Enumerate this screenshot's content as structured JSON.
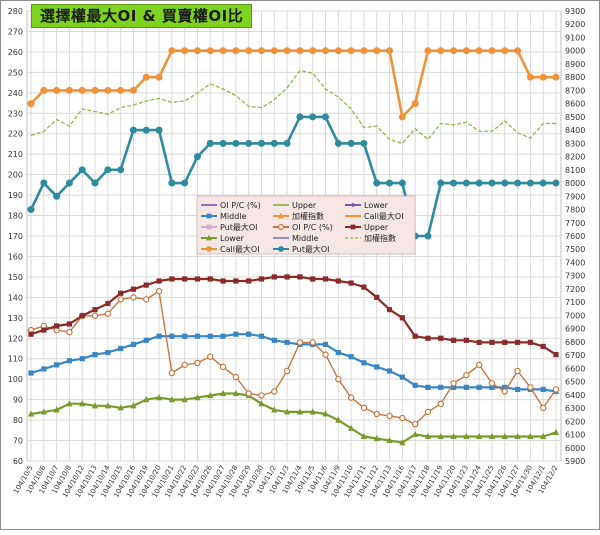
{
  "chart_data": {
    "type": "line",
    "title": "選擇權最大OI & 買賣權OI比",
    "x": [
      "104/10/5",
      "104/10/6",
      "104/10/7",
      "104/10/8",
      "104/10/12",
      "104/10/13",
      "104/10/14",
      "104/10/15",
      "104/10/16",
      "104/10/19",
      "104/10/20",
      "104/10/21",
      "104/10/22",
      "104/10/23",
      "104/10/26",
      "104/10/27",
      "104/10/28",
      "104/10/29",
      "104/10/30",
      "104/11/2",
      "104/11/3",
      "104/11/4",
      "104/11/5",
      "104/11/6",
      "104/11/9",
      "104/11/10",
      "104/11/11",
      "104/11/12",
      "104/11/13",
      "104/11/16",
      "104/11/17",
      "104/11/18",
      "104/11/19",
      "104/11/20",
      "104/11/23",
      "104/11/24",
      "104/11/25",
      "104/11/26",
      "104/11/27",
      "104/11/30",
      "104/12/1",
      "104/12/2"
    ],
    "y_left": {
      "min": 60,
      "max": 280,
      "step": 10
    },
    "y_right": {
      "min": 5900,
      "max": 9300,
      "step": 100
    },
    "grid": true,
    "legend_position": "center",
    "series": [
      {
        "name": "OI P/C (%)",
        "axis": "left",
        "color": "#c8763f",
        "marker": "circle-open",
        "values": [
          124,
          126,
          124,
          123,
          131,
          131,
          132,
          139,
          140,
          139,
          143,
          103,
          107,
          108,
          111,
          106,
          101,
          93,
          92,
          94,
          104,
          118,
          118,
          112,
          100,
          91,
          86,
          83,
          82,
          81,
          78,
          84,
          88,
          98,
          102,
          107,
          98,
          94,
          104,
          96,
          86,
          95
        ]
      },
      {
        "name": "Upper",
        "axis": "left",
        "color": "#8b2a2a",
        "marker": "square",
        "values": [
          122,
          124,
          126,
          127,
          131,
          134,
          137,
          142,
          144,
          146,
          148,
          149,
          149,
          149,
          149,
          148,
          148,
          148,
          149,
          150,
          150,
          150,
          149,
          149,
          148,
          147,
          145,
          140,
          134,
          130,
          121,
          120,
          120,
          119,
          119,
          118,
          118,
          118,
          118,
          118,
          116,
          112
        ]
      },
      {
        "name": "Middle",
        "axis": "left",
        "color": "#3a86c4",
        "marker": "square",
        "values": [
          103,
          105,
          107,
          109,
          110,
          112,
          113,
          115,
          117,
          119,
          121,
          121,
          121,
          121,
          121,
          121,
          122,
          122,
          121,
          119,
          118,
          117,
          117,
          117,
          113,
          111,
          108,
          106,
          104,
          101,
          97,
          96,
          96,
          96,
          96,
          96,
          96,
          96,
          95,
          95,
          95,
          94
        ]
      },
      {
        "name": "Lower",
        "axis": "left",
        "color": "#7a9a2c",
        "marker": "triangle",
        "values": [
          83,
          84,
          85,
          88,
          88,
          87,
          87,
          86,
          87,
          90,
          91,
          90,
          90,
          91,
          92,
          93,
          93,
          92,
          88,
          85,
          84,
          84,
          84,
          83,
          80,
          76,
          72,
          71,
          70,
          69,
          73,
          72,
          72,
          72,
          72,
          72,
          72,
          72,
          72,
          72,
          72,
          74
        ]
      },
      {
        "name": "加權指數",
        "axis": "right",
        "color": "#8cb84a",
        "marker": "none",
        "dashed": true,
        "values": [
          8360,
          8390,
          8480,
          8430,
          8560,
          8540,
          8520,
          8570,
          8590,
          8620,
          8640,
          8610,
          8620,
          8680,
          8750,
          8710,
          8660,
          8580,
          8570,
          8630,
          8720,
          8850,
          8830,
          8710,
          8650,
          8560,
          8420,
          8430,
          8330,
          8300,
          8410,
          8330,
          8450,
          8440,
          8460,
          8390,
          8390,
          8470,
          8380,
          8340,
          8450,
          8450
        ]
      },
      {
        "name": "Call最大OI",
        "axis": "right",
        "color": "#f0923a",
        "marker": "circle",
        "values": [
          8600,
          8700,
          8700,
          8700,
          8700,
          8700,
          8700,
          8700,
          8700,
          8800,
          8800,
          9000,
          9000,
          9000,
          9000,
          9000,
          9000,
          9000,
          9000,
          9000,
          9000,
          9000,
          9000,
          9000,
          9000,
          9000,
          9000,
          9000,
          9000,
          8500,
          8600,
          9000,
          9000,
          9000,
          9000,
          9000,
          9000,
          9000,
          9000,
          8800,
          8800,
          8800
        ]
      },
      {
        "name": "Put最大OI",
        "axis": "right",
        "color": "#2e8a9e",
        "marker": "circle",
        "values": [
          7800,
          8000,
          7900,
          8000,
          8100,
          8000,
          8100,
          8100,
          8400,
          8400,
          8400,
          8000,
          8000,
          8200,
          8300,
          8300,
          8300,
          8300,
          8300,
          8300,
          8300,
          8500,
          8500,
          8500,
          8300,
          8300,
          8300,
          8000,
          8000,
          8000,
          7600,
          7600,
          8000,
          8000,
          8000,
          8000,
          8000,
          8000,
          8000,
          8000,
          8000,
          8000
        ]
      }
    ],
    "legend_entries": [
      {
        "label": "OI P/C (%)",
        "color": "#8e6fb8",
        "kind": "line"
      },
      {
        "label": "Upper",
        "color": "#9bbb59",
        "kind": "line"
      },
      {
        "label": "Lower",
        "color": "#7e57a8",
        "kind": "line-diamond"
      },
      {
        "label": "Middle",
        "color": "#3a86c4",
        "kind": "line-square"
      },
      {
        "label": "加權指數",
        "color": "#f0923a",
        "kind": "line-triangle"
      },
      {
        "label": "Call最大OI",
        "color": "#f0923a",
        "kind": "line"
      },
      {
        "label": "Put最大OI",
        "color": "#d8a8c8",
        "kind": "line-square"
      },
      {
        "label": "OI P/C (%)",
        "color": "#c8763f",
        "kind": "line-circle-open"
      },
      {
        "label": "Upper",
        "color": "#8b2a2a",
        "kind": "line-square"
      },
      {
        "label": "Lower",
        "color": "#7a9a2c",
        "kind": "line-triangle"
      },
      {
        "label": "Middle",
        "color": "#8e8ec8",
        "kind": "line"
      },
      {
        "label": "加權指數",
        "color": "#8cb84a",
        "kind": "dashed"
      },
      {
        "label": "Call最大OI",
        "color": "#f0923a",
        "kind": "line-circle"
      },
      {
        "label": "Put最大OI",
        "color": "#2e8a9e",
        "kind": "line-circle"
      }
    ]
  }
}
